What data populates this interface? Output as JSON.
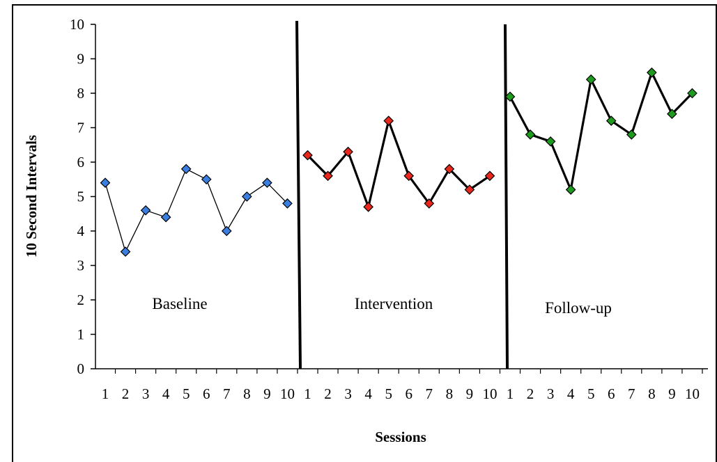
{
  "chart_data": {
    "type": "line",
    "title": "",
    "xlabel": "Sessions",
    "ylabel": "10 Second Intervals",
    "ylim": [
      0,
      10
    ],
    "yticks": [
      "0",
      "1",
      "2",
      "3",
      "4",
      "5",
      "6",
      "7",
      "8",
      "9",
      "10"
    ],
    "grid": false,
    "legend": "none",
    "phases": [
      {
        "label": "Baseline",
        "color": "#3a7fe0",
        "line_style": "thin",
        "categories": [
          "1",
          "2",
          "3",
          "4",
          "5",
          "6",
          "7",
          "8",
          "9",
          "10"
        ],
        "values": [
          5.4,
          3.4,
          4.6,
          4.4,
          5.8,
          5.5,
          4.0,
          5.0,
          5.4,
          4.8
        ]
      },
      {
        "label": "Intervention",
        "color": "#e8281c",
        "line_style": "thick",
        "categories": [
          "1",
          "2",
          "3",
          "4",
          "5",
          "6",
          "7",
          "8",
          "9",
          "10"
        ],
        "values": [
          6.2,
          5.6,
          6.3,
          4.7,
          7.2,
          5.6,
          4.8,
          5.8,
          5.2,
          5.6
        ]
      },
      {
        "label": "Follow-up",
        "color": "#1e9a1e",
        "line_style": "thick",
        "categories": [
          "1",
          "2",
          "3",
          "4",
          "5",
          "6",
          "7",
          "8",
          "9",
          "10"
        ],
        "values": [
          7.9,
          6.8,
          6.6,
          5.2,
          8.4,
          7.2,
          6.8,
          8.6,
          7.4,
          8.0
        ]
      }
    ]
  }
}
